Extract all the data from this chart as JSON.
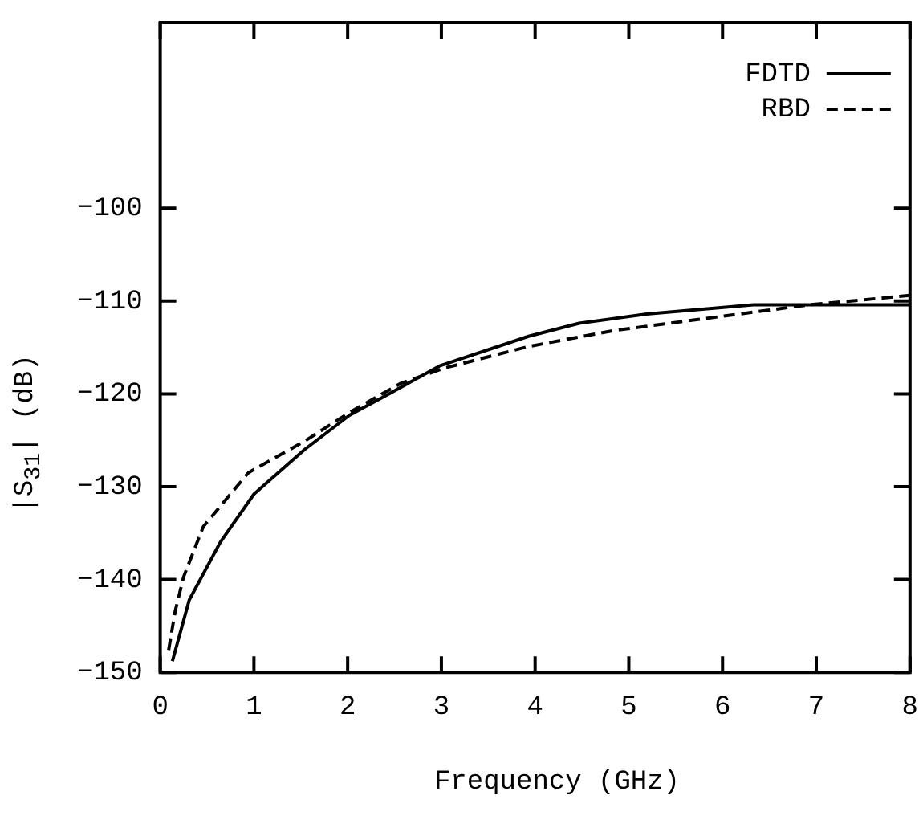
{
  "chart_data": {
    "type": "line",
    "xlabel": "Frequency (GHz)",
    "ylabel": "|S$_{31}$| (dB)",
    "xlim": [
      0,
      8
    ],
    "xticks": [
      0,
      1,
      2,
      3,
      4,
      5,
      6,
      7,
      8
    ],
    "ylim": [
      -150,
      -80
    ],
    "yticks": [
      -150,
      -140,
      -130,
      -120,
      -110,
      -100
    ],
    "grid": false,
    "legend": "top right",
    "marker": "none",
    "series": [
      {
        "name": "FDTD",
        "color": "#000000",
        "line_style": "solid",
        "x": [
          0.13,
          0.31,
          0.64,
          1.0,
          1.54,
          2.02,
          2.44,
          2.98,
          3.93,
          4.47,
          5.19,
          6.33,
          6.93,
          8
        ],
        "values": [
          -148.8,
          -142.2,
          -136,
          -130.8,
          -126,
          -122.3,
          -120,
          -117,
          -113.8,
          -112.4,
          -111.4,
          -110.4,
          -110.4,
          -110.4
        ]
      },
      {
        "name": "RBD",
        "color": "#000000",
        "line_style": "dashed",
        "x": [
          0.09,
          0.16,
          0.25,
          0.46,
          0.94,
          1.54,
          2.02,
          2.56,
          3.04,
          3.93,
          4.83,
          6.03,
          6.93,
          8
        ],
        "values": [
          -147.6,
          -143.4,
          -139.7,
          -134.3,
          -128.5,
          -125.1,
          -122,
          -118.9,
          -117.2,
          -114.9,
          -113.2,
          -111.6,
          -110.4,
          -109.4
        ]
      }
    ]
  }
}
